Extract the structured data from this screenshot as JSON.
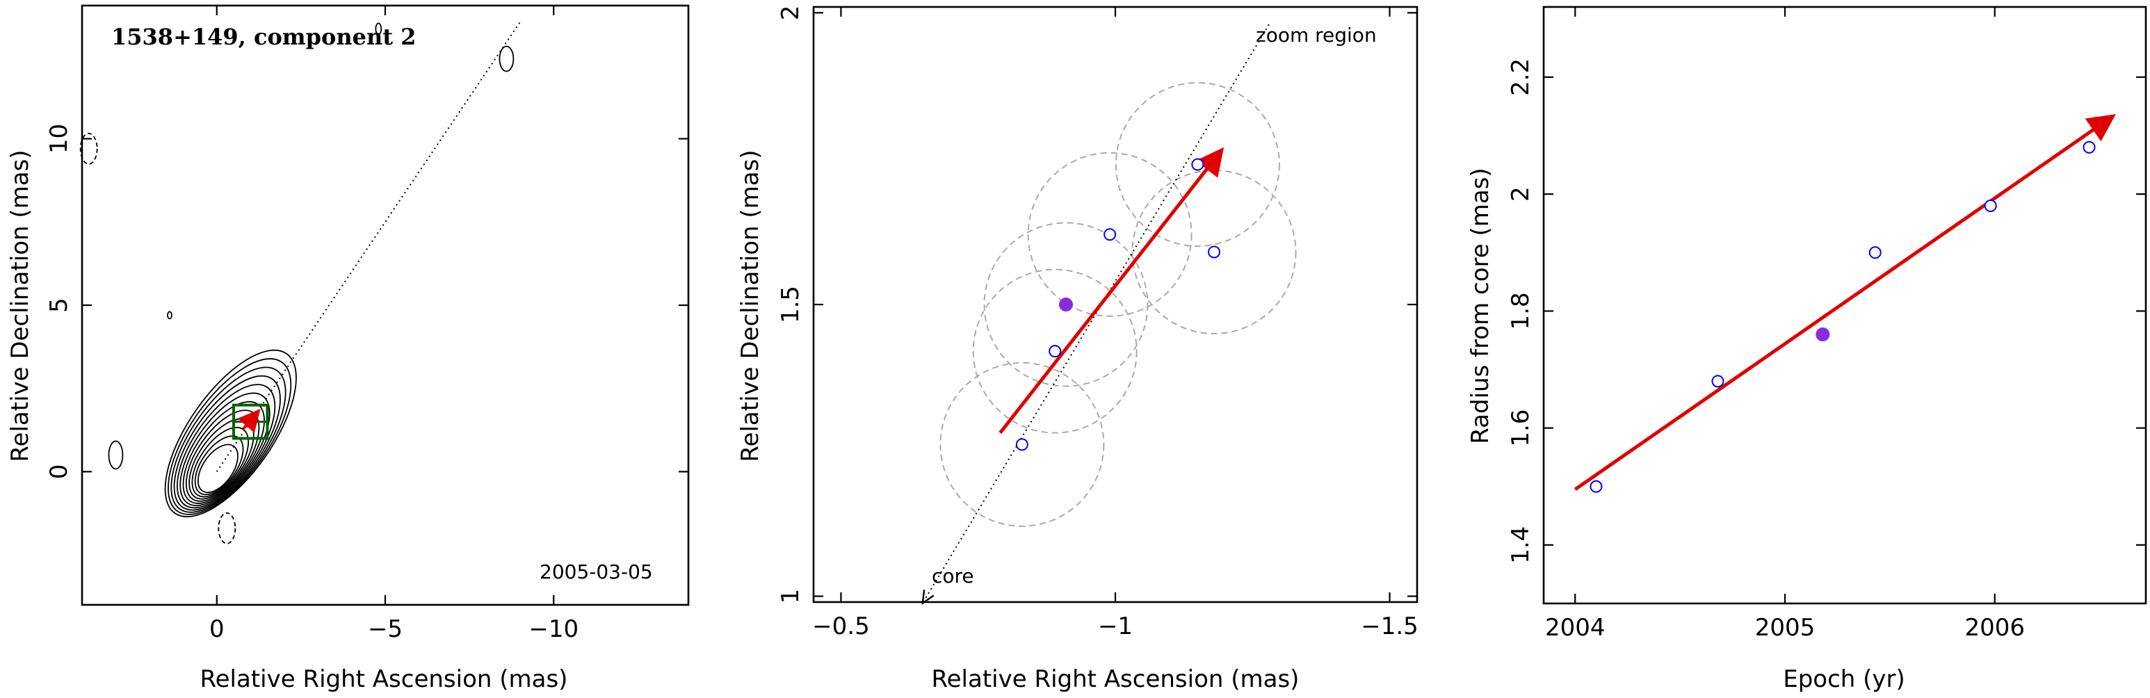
{
  "chart_data": [
    {
      "type": "scatter",
      "panel": "contour-map",
      "title": "1538+149, component 2",
      "date_label": "2005-03-05",
      "xlabel": "Relative Right Ascension (mas)",
      "ylabel": "Relative Declination (mas)",
      "xlim": [
        4,
        -14
      ],
      "ylim": [
        -4,
        14
      ],
      "xticks": [
        0,
        -5,
        -10
      ],
      "yticks": [
        0,
        5,
        10
      ],
      "jet_axis": {
        "from": [
          0,
          0
        ],
        "to": [
          -9,
          13.5
        ],
        "style": "dotted"
      },
      "zoom_box": {
        "x": [
          -0.5,
          -1.5
        ],
        "y": [
          1,
          2
        ],
        "color": "#006400"
      },
      "motion_arrow": {
        "from": [
          -0.78,
          1.28
        ],
        "to": [
          -1.19,
          1.76
        ],
        "color": "#e00000"
      },
      "contours": {
        "center": [
          0,
          0
        ],
        "levels": 12,
        "extends_to": [
          -2,
          3
        ]
      },
      "dashed_contours": [
        [
          3.8,
          9.7
        ],
        [
          -0.3,
          -1.7
        ]
      ]
    },
    {
      "type": "scatter",
      "panel": "zoom-region",
      "xlabel": "Relative Right Ascension (mas)",
      "ylabel": "Relative Declination (mas)",
      "xlim": [
        -0.45,
        -1.55
      ],
      "ylim": [
        0.99,
        2.01
      ],
      "xticks": [
        -0.5,
        -1,
        -1.5
      ],
      "yticks": [
        1,
        1.5,
        2
      ],
      "annotations": [
        "zoom region",
        "core"
      ],
      "points": [
        {
          "x": -0.83,
          "y": 1.26,
          "filled": false
        },
        {
          "x": -0.89,
          "y": 1.42,
          "filled": false
        },
        {
          "x": -0.91,
          "y": 1.5,
          "filled": true
        },
        {
          "x": -0.99,
          "y": 1.62,
          "filled": false
        },
        {
          "x": -1.15,
          "y": 1.74,
          "filled": false
        },
        {
          "x": -1.18,
          "y": 1.59,
          "filled": false
        }
      ],
      "circle_radius": 0.14,
      "jet_axis": {
        "from": [
          -0.65,
          0.99
        ],
        "to": [
          -1.28,
          1.98
        ],
        "style": "dotted"
      },
      "motion_arrow": {
        "from": [
          -0.79,
          1.28
        ],
        "to": [
          -1.19,
          1.76
        ],
        "color": "#e00000"
      },
      "point_color_open": "#0000ff",
      "point_color_filled": "#8a2be2"
    },
    {
      "type": "scatter",
      "panel": "radius-vs-epoch",
      "xlabel": "Epoch (yr)",
      "ylabel": "Radius from core (mas)",
      "xlim": [
        2003.85,
        2006.72
      ],
      "ylim": [
        1.3,
        2.32
      ],
      "xticks": [
        2004,
        2005,
        2006
      ],
      "yticks": [
        1.4,
        1.6,
        1.8,
        2,
        2.2
      ],
      "points": [
        {
          "x": 2004.1,
          "y": 1.5,
          "filled": false
        },
        {
          "x": 2004.68,
          "y": 1.68,
          "filled": false
        },
        {
          "x": 2005.18,
          "y": 1.76,
          "filled": true
        },
        {
          "x": 2005.43,
          "y": 1.9,
          "filled": false
        },
        {
          "x": 2005.98,
          "y": 1.98,
          "filled": false
        },
        {
          "x": 2006.45,
          "y": 2.08,
          "filled": false
        }
      ],
      "fit_arrow": {
        "from": [
          2004.0,
          1.495
        ],
        "to": [
          2006.55,
          2.13
        ],
        "color": "#e00000"
      },
      "point_color_open": "#0000ff",
      "point_color_filled": "#8a2be2"
    }
  ]
}
